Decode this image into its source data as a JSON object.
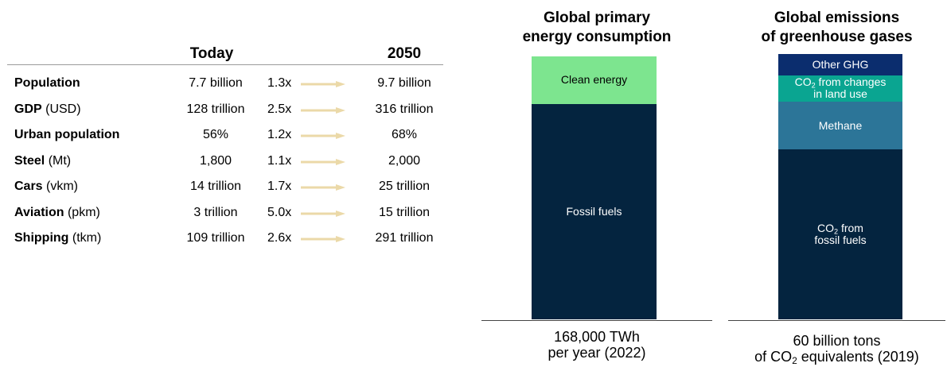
{
  "table": {
    "header_today": "Today",
    "header_2050": "2050",
    "rows": [
      {
        "name": "Population",
        "unit": "",
        "today": "7.7 billion",
        "mult": "1.3x",
        "future": "9.7 billion"
      },
      {
        "name": "GDP",
        "unit": " (USD)",
        "today": "128 trillion",
        "mult": "2.5x",
        "future": "316 trillion"
      },
      {
        "name": "Urban population",
        "unit": "",
        "today": "56%",
        "mult": "1.2x",
        "future": "68%"
      },
      {
        "name": "Steel",
        "unit": " (Mt)",
        "today": "1,800",
        "mult": "1.1x",
        "future": "2,000"
      },
      {
        "name": "Cars",
        "unit": " (vkm)",
        "today": "14 trillion",
        "mult": "1.7x",
        "future": "25 trillion"
      },
      {
        "name": "Aviation",
        "unit": " (pkm)",
        "today": "3 trillion",
        "mult": "5.0x",
        "future": "15 trillion"
      },
      {
        "name": "Shipping",
        "unit": " (tkm)",
        "today": "109 trillion",
        "mult": "2.6x",
        "future": "291 trillion"
      }
    ],
    "arrow_color": "#EBD9A8"
  },
  "chart_data": [
    {
      "type": "bar",
      "stacked": true,
      "title_line1": "Global primary",
      "title_line2": "energy consumption",
      "footer_line1": "168,000 TWh",
      "footer_line2": "per year (2022)",
      "segments": [
        {
          "label": "Fossil fuels",
          "value": 82,
          "color": "#04243F",
          "text_color": "#FFFFFF"
        },
        {
          "label": "Clean energy",
          "value": 18,
          "color": "#7DE58F",
          "text_color": "#000000"
        }
      ]
    },
    {
      "type": "bar",
      "stacked": true,
      "title_line1": "Global emissions",
      "title_line2": "of greenhouse gases",
      "footer_line1": "60 billion tons",
      "footer_line2_pre": "of CO",
      "footer_line2_sub": "2",
      "footer_line2_post": " equivalents (2019)",
      "segments": [
        {
          "label_pre": "CO",
          "label_sub": "2",
          "label_post": " from",
          "label_line2": "fossil fuels",
          "value": 64,
          "color": "#04243F",
          "text_color": "#FFFFFF"
        },
        {
          "label_pre": "Methane",
          "label_sub": "",
          "label_post": "",
          "label_line2": "",
          "value": 18,
          "color": "#2C7598",
          "text_color": "#FFFFFF"
        },
        {
          "label_pre": "CO",
          "label_sub": "2",
          "label_post": " from changes",
          "label_line2": "in land use",
          "value": 10,
          "color": "#0AA591",
          "text_color": "#FFFFFF"
        },
        {
          "label_pre": "Other GHG",
          "label_sub": "",
          "label_post": "",
          "label_line2": "",
          "value": 8,
          "color": "#0B2D6E",
          "text_color": "#FFFFFF"
        }
      ]
    }
  ]
}
